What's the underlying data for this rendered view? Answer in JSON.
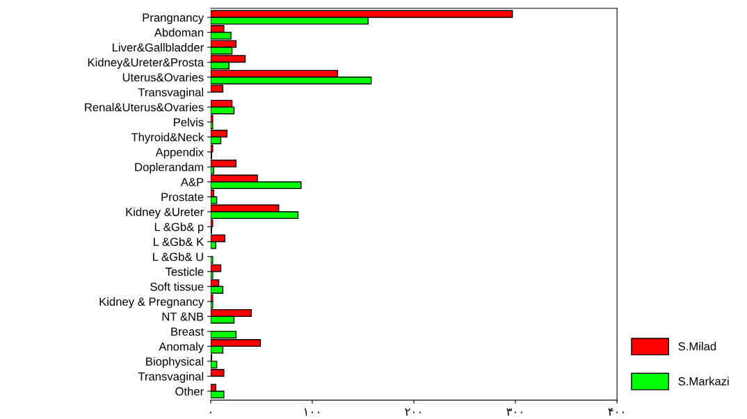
{
  "chart_data": {
    "type": "bar",
    "orientation": "horizontal",
    "categories": [
      "Prangnancy",
      "Abdoman",
      "Liver&Gallbladder",
      "Kidney&Ureter&Prosta",
      "Uterus&Ovaries",
      "Transvaginal",
      "Renal&Uterus&Ovaries",
      "Pelvis",
      "Thyroid&Neck",
      "Appendix",
      "Doplerandam",
      "A&P",
      "Prostate",
      "Kidney &Ureter",
      "L &Gb& p",
      "L &Gb& K",
      "L &Gb& U",
      "Testicle",
      "Soft tissue",
      "Kidney & Pregnancy",
      "NT &NB",
      "Breast",
      "Anomaly",
      "Biophysical",
      "Transvaginal",
      "Other"
    ],
    "series": [
      {
        "name": "S.Milad",
        "color": "#ff0000",
        "values": [
          297,
          13,
          25,
          34,
          125,
          12,
          21,
          2,
          16,
          2,
          25,
          46,
          3,
          67,
          2,
          14,
          null,
          10,
          8,
          2,
          40,
          null,
          49,
          1,
          13,
          5
        ]
      },
      {
        "name": "S.Markazi",
        "color": "#00ff00",
        "values": [
          155,
          20,
          21,
          18,
          158,
          null,
          23,
          2,
          10,
          1,
          3,
          89,
          6,
          86,
          1,
          5,
          2,
          2,
          12,
          2,
          23,
          25,
          12,
          6,
          null,
          13
        ]
      }
    ],
    "xlim": [
      0,
      400
    ],
    "xticks": [
      {
        "value": 0,
        "label": "۰"
      },
      {
        "value": 100,
        "label": "۱۰۰"
      },
      {
        "value": 200,
        "label": "۲۰۰"
      },
      {
        "value": 300,
        "label": "۳۰۰"
      },
      {
        "value": 400,
        "label": "۴۰۰"
      }
    ],
    "grid": false,
    "legend": "bottom right"
  }
}
